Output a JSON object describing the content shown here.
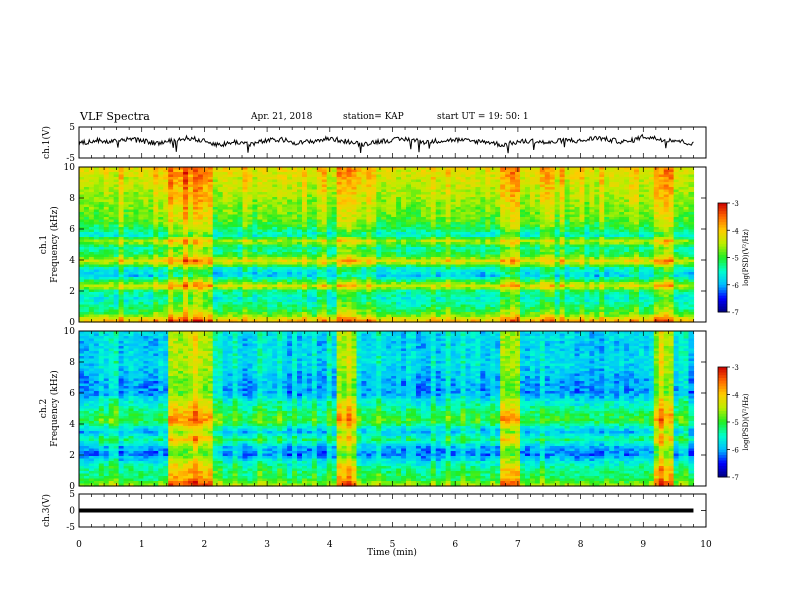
{
  "header": {
    "title": "VLF Spectra",
    "date": "Apr. 21, 2018",
    "station": "station= KAP",
    "start": "start  UT  =  19: 50: 1"
  },
  "colors": {
    "trace": "#000000",
    "colormap": [
      "#000080",
      "#0000ff",
      "#00bfff",
      "#00ffcc",
      "#22ee22",
      "#bbee00",
      "#ffcc00",
      "#ff6600",
      "#cc0000",
      "#ffffff"
    ]
  },
  "chart_data": [
    {
      "type": "line",
      "panel": "ch.1 waveform",
      "ylabel": "ch.1(V)",
      "ylim": [
        -5,
        5
      ],
      "yticks": [
        "-5",
        "5"
      ],
      "x": [
        0,
        0.25,
        0.5,
        0.75,
        1,
        1.25,
        1.5,
        1.75,
        2,
        2.25,
        2.5,
        2.75,
        3,
        3.25,
        3.5,
        3.75,
        4,
        4.25,
        4.5,
        4.75,
        5,
        5.25,
        5.5,
        5.75,
        6,
        6.25,
        6.5,
        6.75,
        7,
        7.25,
        7.5,
        7.75,
        8,
        8.25,
        8.5,
        8.75,
        9,
        9.25,
        9.5,
        9.75
      ],
      "values": [
        -0.5,
        0.8,
        0.2,
        1.2,
        0.5,
        -0.3,
        0.6,
        1.5,
        0.4,
        -0.8,
        0.2,
        -0.5,
        0.6,
        0.9,
        -0.2,
        0.5,
        1.3,
        0.4,
        -0.6,
        0.3,
        0.8,
        1.1,
        0.2,
        0.6,
        0.9,
        0.4,
        0.3,
        -0.8,
        0.2,
        0.5,
        -0.2,
        0.9,
        0.4,
        1.6,
        0.7,
        0.1,
        2.0,
        1.1,
        0.8,
        -0.3
      ]
    },
    {
      "type": "heatmap",
      "panel": "ch.1 spectrogram",
      "ylabel": "ch.1\nFrequency (kHz)",
      "ylim": [
        0,
        10
      ],
      "yticks": [
        "0",
        "2",
        "4",
        "6",
        "8",
        "10"
      ],
      "xlim": [
        0,
        10
      ],
      "colorbar": {
        "label": "log(PSD)(V²/Hz)",
        "range": [
          -7,
          -3
        ],
        "ticks": [
          "-7",
          "-6",
          "-5",
          "-4",
          "-3"
        ]
      },
      "base_profile_khz_to_logpsd": [
        [
          0,
          -3.8
        ],
        [
          0.5,
          -4.9
        ],
        [
          1.0,
          -5.3
        ],
        [
          1.5,
          -5.6
        ],
        [
          2.0,
          -5.3
        ],
        [
          2.3,
          -4.3
        ],
        [
          2.6,
          -5.0
        ],
        [
          3.0,
          -5.9
        ],
        [
          3.5,
          -5.5
        ],
        [
          3.9,
          -4.2
        ],
        [
          4.3,
          -5.1
        ],
        [
          4.8,
          -5.4
        ],
        [
          5.2,
          -4.5
        ],
        [
          5.6,
          -5.6
        ],
        [
          6.0,
          -5.2
        ],
        [
          6.5,
          -4.9
        ],
        [
          7.0,
          -4.8
        ],
        [
          8.0,
          -4.6
        ],
        [
          9.0,
          -4.4
        ],
        [
          10.0,
          -4.2
        ]
      ],
      "bright_segments_min": [
        [
          1.45,
          2.1
        ],
        [
          4.1,
          4.45
        ],
        [
          6.7,
          7.05
        ],
        [
          9.2,
          9.5
        ]
      ]
    },
    {
      "type": "heatmap",
      "panel": "ch.2 spectrogram",
      "ylabel": "ch.2\nFrequency (kHz)",
      "ylim": [
        0,
        10
      ],
      "yticks": [
        "0",
        "2",
        "4",
        "6",
        "8",
        "10"
      ],
      "xlim": [
        0,
        10
      ],
      "colorbar": {
        "label": "log(PSD)(V²/Hz)",
        "range": [
          -7,
          -3
        ],
        "ticks": [
          "-7",
          "-6",
          "-5",
          "-4",
          "-3"
        ]
      },
      "base_profile_khz_to_logpsd": [
        [
          0,
          -4.6
        ],
        [
          0.5,
          -5.2
        ],
        [
          1.0,
          -5.3
        ],
        [
          1.6,
          -5.7
        ],
        [
          2.0,
          -6.2
        ],
        [
          2.5,
          -6.0
        ],
        [
          3.0,
          -5.3
        ],
        [
          3.5,
          -6.0
        ],
        [
          4.2,
          -5.0
        ],
        [
          5.0,
          -5.4
        ],
        [
          5.5,
          -5.7
        ],
        [
          6.0,
          -6.1
        ],
        [
          7.0,
          -6.0
        ],
        [
          8.0,
          -5.8
        ],
        [
          9.0,
          -5.9
        ],
        [
          10.0,
          -5.8
        ]
      ],
      "bright_segments_min": [
        [
          1.45,
          2.1
        ],
        [
          4.1,
          4.45
        ],
        [
          6.7,
          7.05
        ],
        [
          9.2,
          9.5
        ]
      ]
    },
    {
      "type": "line",
      "panel": "ch.3 waveform",
      "ylabel": "ch.3(V)",
      "ylim": [
        -5,
        5
      ],
      "yticks": [
        "-5",
        "0",
        "5"
      ],
      "x": [
        0,
        9.8
      ],
      "values": [
        0,
        0
      ]
    }
  ],
  "xaxis": {
    "label": "Time  (min)",
    "ticks": [
      "0",
      "1",
      "2",
      "3",
      "4",
      "5",
      "6",
      "7",
      "8",
      "9",
      "10"
    ],
    "range": [
      0,
      10
    ]
  }
}
